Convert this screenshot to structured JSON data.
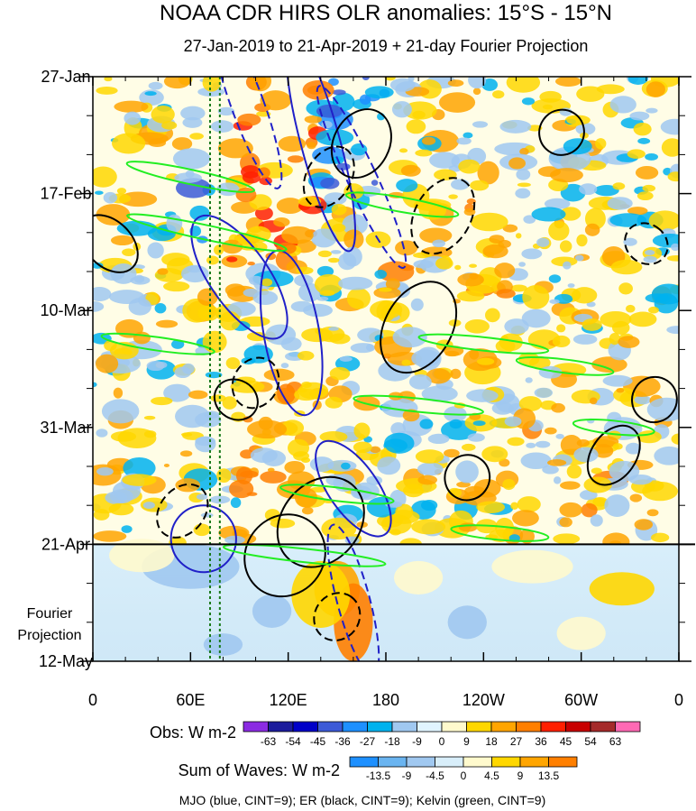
{
  "chart_data": {
    "type": "heatmap",
    "title": "NOAA CDR HIRS OLR anomalies: 15°S - 15°N",
    "subtitle": "27-Jan-2019 to 21-Apr-2019 + 21-day Fourier Projection",
    "x_ticks": [
      "0",
      "60E",
      "120E",
      "180",
      "120W",
      "60W",
      "0"
    ],
    "x_tick_values": [
      0,
      60,
      120,
      180,
      240,
      300,
      360
    ],
    "xlim": [
      0,
      360
    ],
    "y_ticks": [
      "27-Jan",
      "17-Feb",
      "10-Mar",
      "31-Mar",
      "21-Apr",
      "12-May"
    ],
    "y_tick_days": [
      0,
      21,
      42,
      63,
      84,
      105
    ],
    "ylim_days": [
      0,
      105
    ],
    "projection_start_day": 84,
    "projection_label": [
      "Fourier",
      "Projection"
    ],
    "reference_lines_lon": [
      72,
      78
    ],
    "obs_colorbar": {
      "label": "Obs: W m-2",
      "levels": [
        "-63",
        "-54",
        "-45",
        "-36",
        "-27",
        "-18",
        "-9",
        "0",
        "9",
        "18",
        "27",
        "36",
        "45",
        "54",
        "63"
      ],
      "colors": [
        "#8b2be2",
        "#1c1c9c",
        "#0000c8",
        "#3c5ad7",
        "#1e90ff",
        "#00b2ee",
        "#a0c8f0",
        "#e0f4ff",
        "#fffacd",
        "#ffd700",
        "#ffa500",
        "#ff7f00",
        "#ff2000",
        "#c80000",
        "#a52a2a",
        "#ff69b4"
      ]
    },
    "waves_colorbar": {
      "label": "Sum of Waves: W m-2",
      "levels": [
        "-13.5",
        "-9",
        "-4.5",
        "0",
        "4.5",
        "9",
        "13.5"
      ],
      "colors": [
        "#1e90ff",
        "#6ab4f0",
        "#a0c8f0",
        "#d8eefa",
        "#fffacd",
        "#ffd700",
        "#ffa500",
        "#ff7f00"
      ]
    },
    "footnote": "MJO (blue, CINT=9); ER (black, CINT=9); Kelvin (green, CINT=9)",
    "series": [
      {
        "name": "MJO",
        "color": "#2020c8",
        "contours": [
          {
            "lon": 95,
            "day": 5,
            "rx": 10,
            "ry": 16,
            "rot": -20,
            "dash": true
          },
          {
            "lon": 140,
            "day": 12,
            "rx": 12,
            "ry": 20,
            "rot": -15,
            "dash": false
          },
          {
            "lon": 165,
            "day": 18,
            "rx": 9,
            "ry": 18,
            "rot": -25,
            "dash": true
          },
          {
            "lon": 90,
            "day": 36,
            "rx": 18,
            "ry": 13,
            "rot": -35,
            "dash": false
          },
          {
            "lon": 122,
            "day": 46,
            "rx": 17,
            "ry": 15,
            "rot": -10,
            "dash": false
          },
          {
            "lon": 160,
            "day": 94,
            "rx": 10,
            "ry": 14,
            "rot": -15,
            "dash": true
          },
          {
            "lon": 68,
            "day": 83,
            "rx": 20,
            "ry": 6,
            "rot": -5,
            "dash": false
          },
          {
            "lon": 160,
            "day": 74,
            "rx": 15,
            "ry": 10,
            "rot": -35,
            "dash": false
          }
        ]
      },
      {
        "name": "ER",
        "color": "#000000",
        "contours": [
          {
            "lon": 165,
            "day": 12,
            "rx": 22,
            "ry": 5,
            "rot": -62,
            "dash": false
          },
          {
            "lon": 145,
            "day": 18,
            "rx": 20,
            "ry": 4,
            "rot": -60,
            "dash": true
          },
          {
            "lon": 215,
            "day": 25,
            "rx": 25,
            "ry": 5,
            "rot": -60,
            "dash": true
          },
          {
            "lon": 200,
            "day": 45,
            "rx": 30,
            "ry": 6,
            "rot": -60,
            "dash": false
          },
          {
            "lon": 288,
            "day": 10,
            "rx": 14,
            "ry": 4,
            "rot": -55,
            "dash": false
          },
          {
            "lon": 340,
            "day": 30,
            "rx": 12,
            "ry": 4,
            "rot": -55,
            "dash": true
          },
          {
            "lon": 10,
            "day": 30,
            "rx": 14,
            "ry": 6,
            "rot": -45,
            "dash": false
          },
          {
            "lon": 100,
            "day": 55,
            "rx": 16,
            "ry": 4,
            "rot": -60,
            "dash": true
          },
          {
            "lon": 88,
            "day": 58,
            "rx": 12,
            "ry": 4,
            "rot": -60,
            "dash": false
          },
          {
            "lon": 140,
            "day": 80,
            "rx": 30,
            "ry": 7,
            "rot": -50,
            "dash": false
          },
          {
            "lon": 118,
            "day": 86,
            "rx": 26,
            "ry": 7,
            "rot": -50,
            "dash": false
          },
          {
            "lon": 55,
            "day": 78,
            "rx": 18,
            "ry": 4,
            "rot": -50,
            "dash": true
          },
          {
            "lon": 320,
            "day": 68,
            "rx": 20,
            "ry": 4,
            "rot": -55,
            "dash": false
          },
          {
            "lon": 345,
            "day": 58,
            "rx": 14,
            "ry": 4,
            "rot": -55,
            "dash": false
          },
          {
            "lon": 230,
            "day": 72,
            "rx": 14,
            "ry": 4,
            "rot": -55,
            "dash": false
          },
          {
            "lon": 150,
            "day": 97,
            "rx": 15,
            "ry": 4,
            "rot": -55,
            "dash": true
          }
        ]
      },
      {
        "name": "Kelvin",
        "color": "#22ee22",
        "contours": [
          {
            "lon": 60,
            "day": 18,
            "rx": 40,
            "ry": 1.3,
            "rot": 12,
            "dash": false
          },
          {
            "lon": 70,
            "day": 28,
            "rx": 50,
            "ry": 1.3,
            "rot": 12,
            "dash": false
          },
          {
            "lon": 190,
            "day": 23,
            "rx": 35,
            "ry": 1.3,
            "rot": 10,
            "dash": false
          },
          {
            "lon": 240,
            "day": 48,
            "rx": 40,
            "ry": 1.2,
            "rot": 6,
            "dash": false
          },
          {
            "lon": 290,
            "day": 52,
            "rx": 30,
            "ry": 1.2,
            "rot": 7,
            "dash": false
          },
          {
            "lon": 200,
            "day": 59,
            "rx": 40,
            "ry": 1.2,
            "rot": 6,
            "dash": false
          },
          {
            "lon": 320,
            "day": 63,
            "rx": 25,
            "ry": 1.2,
            "rot": 6,
            "dash": false
          },
          {
            "lon": 40,
            "day": 48,
            "rx": 35,
            "ry": 1.2,
            "rot": 8,
            "dash": false
          },
          {
            "lon": 150,
            "day": 75,
            "rx": 35,
            "ry": 1.2,
            "rot": 7,
            "dash": false
          },
          {
            "lon": 130,
            "day": 86,
            "rx": 50,
            "ry": 1.2,
            "rot": 6,
            "dash": false
          },
          {
            "lon": 250,
            "day": 82,
            "rx": 30,
            "ry": 1.2,
            "rot": 5,
            "dash": false
          }
        ]
      }
    ]
  }
}
